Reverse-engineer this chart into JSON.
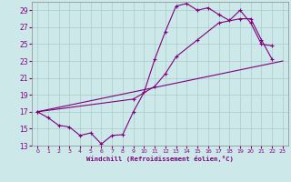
{
  "xlabel": "Windchill (Refroidissement éolien,°C)",
  "bg_color": "#cce8e8",
  "grid_color": "#aacccc",
  "line_color": "#800080",
  "xlim": [
    -0.5,
    23.5
  ],
  "ylim": [
    13,
    30
  ],
  "yticks": [
    13,
    15,
    17,
    19,
    21,
    23,
    25,
    27,
    29
  ],
  "xticks": [
    0,
    1,
    2,
    3,
    4,
    5,
    6,
    7,
    8,
    9,
    10,
    11,
    12,
    13,
    14,
    15,
    16,
    17,
    18,
    19,
    20,
    21,
    22,
    23
  ],
  "series1": [
    [
      0,
      17.0
    ],
    [
      1,
      16.3
    ],
    [
      2,
      15.4
    ],
    [
      3,
      15.2
    ],
    [
      4,
      14.2
    ],
    [
      5,
      14.5
    ],
    [
      6,
      13.2
    ],
    [
      7,
      14.2
    ],
    [
      8,
      14.3
    ],
    [
      9,
      17.0
    ],
    [
      10,
      19.3
    ],
    [
      11,
      23.2
    ],
    [
      12,
      26.5
    ],
    [
      13,
      29.5
    ],
    [
      14,
      29.8
    ],
    [
      15,
      29.0
    ],
    [
      16,
      29.3
    ],
    [
      17,
      28.5
    ],
    [
      18,
      27.8
    ],
    [
      19,
      29.0
    ],
    [
      20,
      27.5
    ],
    [
      21,
      25.0
    ],
    [
      22,
      24.8
    ]
  ],
  "series2": [
    [
      0,
      17.0
    ],
    [
      9,
      18.5
    ],
    [
      11,
      20.0
    ],
    [
      12,
      21.5
    ],
    [
      13,
      23.5
    ],
    [
      15,
      25.5
    ],
    [
      17,
      27.5
    ],
    [
      19,
      28.0
    ],
    [
      20,
      28.0
    ],
    [
      21,
      25.5
    ],
    [
      22,
      23.2
    ]
  ],
  "series3": [
    [
      0,
      17.0
    ],
    [
      23,
      23.0
    ]
  ]
}
